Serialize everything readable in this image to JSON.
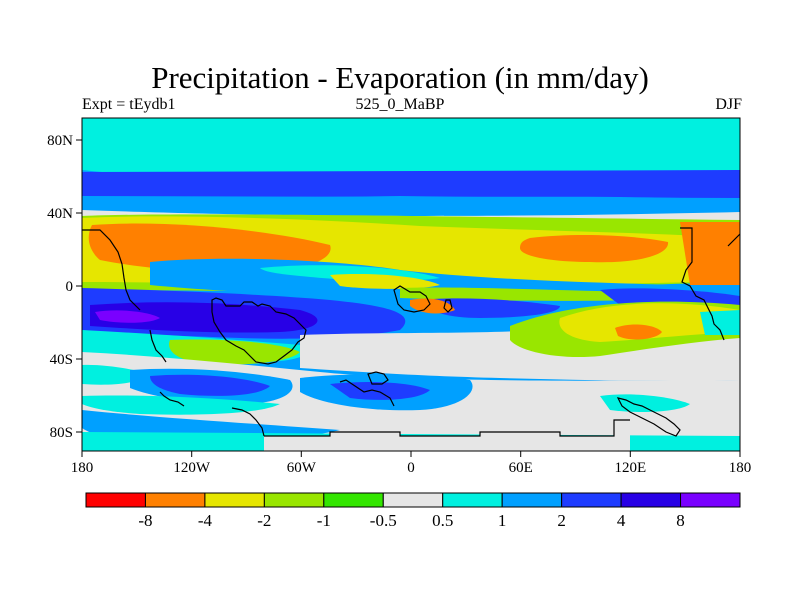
{
  "title": "Precipitation - Evaporation (in mm/day)",
  "subtitle_left": "Expt = tEydb1",
  "subtitle_center": "525_0_MaBP",
  "subtitle_right": "DJF",
  "map": {
    "lon_range": [
      -180,
      180
    ],
    "lat_range": [
      -90,
      90
    ],
    "lon_ticks": [
      "180",
      "120W",
      "60W",
      "0",
      "60E",
      "120E",
      "180"
    ],
    "lat_ticks": [
      "80N",
      "40N",
      "0",
      "40S",
      "80S"
    ]
  },
  "colorbar": {
    "colors": [
      "#ff0000",
      "#ff8000",
      "#e6e600",
      "#99e600",
      "#33e600",
      "#e6e6e6",
      "#00f0e0",
      "#00a0ff",
      "#1e3cff",
      "#2800e6",
      "#7a00ff"
    ],
    "labels": [
      "-8",
      "-4",
      "-2",
      "-1",
      "-0.5",
      "0.5",
      "1",
      "2",
      "4",
      "8"
    ]
  }
}
